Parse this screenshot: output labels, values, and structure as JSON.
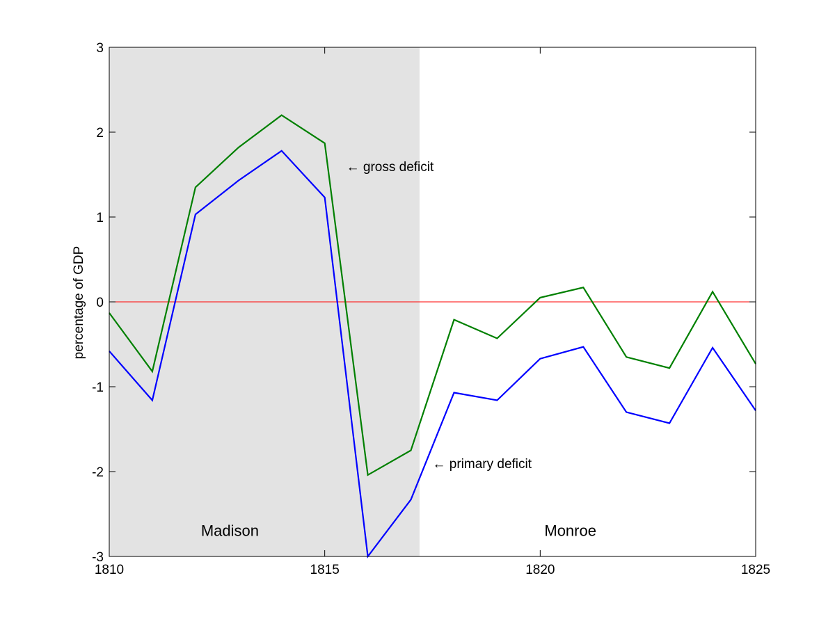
{
  "chart_data": {
    "type": "line",
    "title": "",
    "xlabel": "",
    "ylabel": "percentage of GDP",
    "xlim": [
      1810,
      1825
    ],
    "ylim": [
      -3,
      3
    ],
    "xticks": [
      1810,
      1815,
      1820,
      1825
    ],
    "yticks": [
      -3,
      -2,
      -1,
      0,
      1,
      2,
      3
    ],
    "grid": false,
    "shaded_region": {
      "x_start": 1810,
      "x_end": 1817.2,
      "color": "#e3e3e3"
    },
    "reference_line": {
      "y": 0,
      "color": "#ff0000"
    },
    "x": [
      1810,
      1811,
      1812,
      1813,
      1814,
      1815,
      1816,
      1817,
      1818,
      1819,
      1820,
      1821,
      1822,
      1823,
      1824,
      1825
    ],
    "series": [
      {
        "color": "#008000",
        "values": [
          -0.13,
          -0.82,
          1.35,
          1.82,
          2.2,
          1.87,
          -2.04,
          -1.75,
          -0.21,
          -0.43,
          0.05,
          0.17,
          -0.65,
          -0.78,
          0.12,
          -0.73
        ]
      },
      {
        "color": "#0000ff",
        "values": [
          -0.58,
          -1.16,
          1.03,
          1.43,
          1.78,
          1.23,
          -3.0,
          -2.33,
          -1.07,
          -1.16,
          -0.67,
          -0.53,
          -1.3,
          -1.43,
          -0.54,
          -1.28
        ]
      }
    ],
    "annotations": [
      {
        "text": "← gross deficit",
        "x": 1815.5,
        "y": 1.6
      },
      {
        "text": "← primary deficit",
        "x": 1817.5,
        "y": -1.9
      },
      {
        "text": "Madison",
        "x": 1812.8,
        "y": -2.7
      },
      {
        "text": "Monroe",
        "x": 1820.7,
        "y": -2.7
      }
    ]
  }
}
